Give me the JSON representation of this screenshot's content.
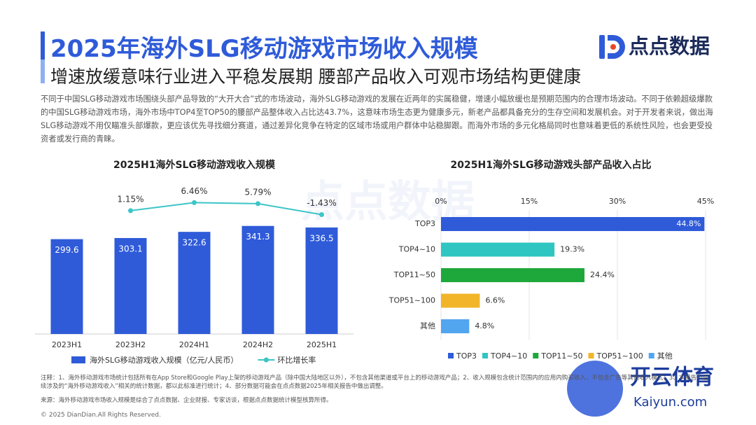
{
  "header": {
    "title": "2025年海外SLG移动游戏市场收入规模",
    "subtitle": "增速放缓意味行业进入平稳发展期 腰部产品收入可观市场结构更健康",
    "logo": "点点数据"
  },
  "intro": "不同于中国SLG移动游戏市场围绕头部产品导致的“大开大合”式的市场波动，海外SLG移动游戏的发展在近两年的实属稳健，增速小幅放缓也是预期范围内的合理市场波动。不同于依赖超级爆款的中国SLG移动游戏市场，海外市场中TOP4至TOP50的腰部产品整体收入占比达43.7%，这意味市场生态更为健康多元，新老产品都具备充分的生存空间和发展机会。对于开发者来说，做出海SLG移动游戏不用仅瞄准头部爆款，更应该优先寻找细分赛道，通过差异化竞争在特定的区域市场或用户群体中站稳脚跟。而海外市场的多元化格局同时也意味着更低的系统性风险，也会更受投资者或发行商的青睐。",
  "chart_data": [
    {
      "type": "bar",
      "title": "2025H1海外SLG移动游戏收入规模",
      "categories": [
        "2023H1",
        "2023H2",
        "2024H1",
        "2024H2",
        "2025H1"
      ],
      "series": [
        {
          "name": "海外SLG移动游戏收入规模（亿元/人民币）",
          "type": "bar",
          "color": "#2f5bd9",
          "values": [
            299.6,
            303.1,
            322.6,
            341.3,
            336.5
          ]
        },
        {
          "name": "环比增长率",
          "type": "line",
          "axis": "y2",
          "color": "#3cc5c7",
          "values": [
            null,
            1.15,
            6.46,
            5.79,
            -1.43
          ],
          "value_labels": [
            null,
            "1.15%",
            "6.46%",
            "5.79%",
            "-1.43%"
          ]
        }
      ],
      "ylim": [
        0,
        480
      ],
      "y2lim": [
        -80,
        20
      ]
    },
    {
      "type": "hbar",
      "title": "2025H1海外SLG移动游戏头部产品收入占比",
      "categories": [
        "TOP3",
        "TOP4~10",
        "TOP11~50",
        "TOP51~100",
        "其他"
      ],
      "values": [
        44.8,
        19.3,
        24.4,
        6.6,
        4.8
      ],
      "value_labels": [
        "44.8%",
        "19.3%",
        "24.4%",
        "6.6%",
        "4.8%"
      ],
      "colors": [
        "#2f5bd9",
        "#2fc6c2",
        "#1ea83c",
        "#f2b52a",
        "#52a5ef"
      ],
      "xlim": [
        0,
        45
      ],
      "xticks": [
        {
          "value": 0,
          "label": "0%"
        },
        {
          "value": 15,
          "label": "15%"
        },
        {
          "value": 30,
          "label": "30%"
        },
        {
          "value": 45,
          "label": "45%"
        }
      ],
      "grid": true,
      "legend": true
    }
  ],
  "notes": [
    "注释：1、海外移动游戏市场统计包括所有在App Store和Google Play上架的移动游戏产品（除中国大陆地区以外），不包含其他渠道或平台上的移动游戏产品；2、收入规模包含统计范围内的应用内购买收入，不包含广告等其他收入模式；3、本报告中后续涉及的“海外移动游戏收入”相关的统计数据，都以此标准进行统计；4、部分数据可能会在点点数据2025年相关报告中做出调整。",
    "来源：海外移动游戏市场收入规模是综合了点点数据、企业财报、专家访谈，根据点点数据统计模型核算所得。"
  ],
  "copyright": "© 2025 DianDian.All Rights Reserved.",
  "watermark": {
    "brand": "开云体育",
    "url": "Kaiyun.com"
  }
}
